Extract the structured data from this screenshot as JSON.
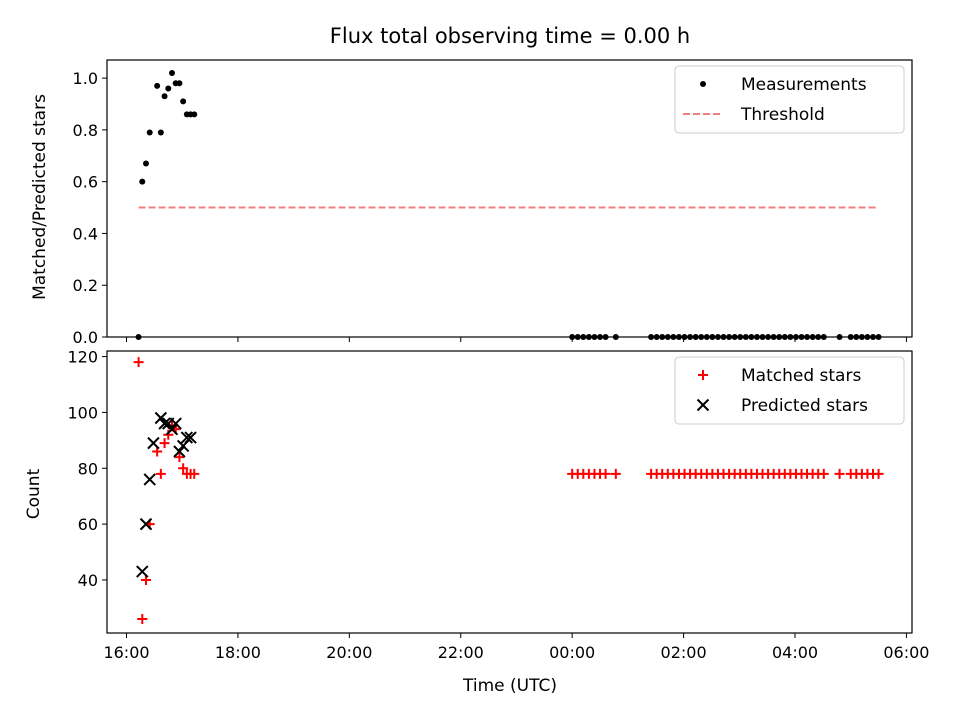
{
  "chart_data": [
    {
      "type": "scatter",
      "title": "Flux total observing time = 0.00 h",
      "ylabel": "Matched/Predicted stars",
      "xlim": [
        "2023-01-01T15:39",
        "2023-01-02T06:06"
      ],
      "ylim": [
        0,
        1.07
      ],
      "yticks": [
        "0.0",
        "0.2",
        "0.4",
        "0.6",
        "0.8",
        "1.0"
      ],
      "legend_position": "top-right",
      "series": [
        {
          "name": "Measurements",
          "kind": "scatter",
          "marker": "dot",
          "color": "#000000",
          "x": [
            "2023-01-01T16:13",
            "2023-01-01T16:17",
            "2023-01-01T16:21",
            "2023-01-01T16:25",
            "2023-01-01T16:33",
            "2023-01-01T16:37",
            "2023-01-01T16:41",
            "2023-01-01T16:45",
            "2023-01-01T16:49",
            "2023-01-01T16:53",
            "2023-01-01T16:57",
            "2023-01-01T17:01",
            "2023-01-01T17:05",
            "2023-01-01T17:09",
            "2023-01-01T17:13",
            "2023-01-02T00:00",
            "2023-01-02T00:06",
            "2023-01-02T00:12",
            "2023-01-02T00:18",
            "2023-01-02T00:24",
            "2023-01-02T00:30",
            "2023-01-02T00:36",
            "2023-01-02T00:47",
            "2023-01-02T01:25",
            "2023-01-02T01:31",
            "2023-01-02T01:37",
            "2023-01-02T01:43",
            "2023-01-02T01:49",
            "2023-01-02T01:55",
            "2023-01-02T02:01",
            "2023-01-02T02:07",
            "2023-01-02T02:13",
            "2023-01-02T02:19",
            "2023-01-02T02:25",
            "2023-01-02T02:31",
            "2023-01-02T02:37",
            "2023-01-02T02:43",
            "2023-01-02T02:49",
            "2023-01-02T02:55",
            "2023-01-02T03:01",
            "2023-01-02T03:07",
            "2023-01-02T03:13",
            "2023-01-02T03:19",
            "2023-01-02T03:25",
            "2023-01-02T03:31",
            "2023-01-02T03:37",
            "2023-01-02T03:43",
            "2023-01-02T03:49",
            "2023-01-02T03:55",
            "2023-01-02T04:01",
            "2023-01-02T04:07",
            "2023-01-02T04:13",
            "2023-01-02T04:19",
            "2023-01-02T04:25",
            "2023-01-02T04:31",
            "2023-01-02T04:48",
            "2023-01-02T05:00",
            "2023-01-02T05:06",
            "2023-01-02T05:12",
            "2023-01-02T05:18",
            "2023-01-02T05:24",
            "2023-01-02T05:30"
          ],
          "y": [
            0.0,
            0.6,
            0.67,
            0.79,
            0.97,
            0.79,
            0.93,
            0.96,
            1.02,
            0.98,
            0.98,
            0.91,
            0.86,
            0.86,
            0.86,
            0,
            0,
            0,
            0,
            0,
            0,
            0,
            0,
            0,
            0,
            0,
            0,
            0,
            0,
            0,
            0,
            0,
            0,
            0,
            0,
            0,
            0,
            0,
            0,
            0,
            0,
            0,
            0,
            0,
            0,
            0,
            0,
            0,
            0,
            0,
            0,
            0,
            0,
            0,
            0,
            0,
            0,
            0,
            0,
            0,
            0,
            0
          ]
        },
        {
          "name": "Threshold",
          "kind": "line",
          "dash": "dashed",
          "color": "#f08080",
          "x": [
            "2023-01-01T16:13",
            "2023-01-02T05:30"
          ],
          "y": [
            0.5,
            0.5
          ]
        }
      ]
    },
    {
      "type": "scatter",
      "xlabel": "Time (UTC)",
      "ylabel": "Count",
      "xlim": [
        "2023-01-01T15:39",
        "2023-01-02T06:06"
      ],
      "ylim": [
        21,
        122
      ],
      "xticks": [
        "16:00",
        "18:00",
        "20:00",
        "22:00",
        "00:00",
        "02:00",
        "04:00",
        "06:00"
      ],
      "xtick_times": [
        "2023-01-01T16:00",
        "2023-01-01T18:00",
        "2023-01-01T20:00",
        "2023-01-01T22:00",
        "2023-01-02T00:00",
        "2023-01-02T02:00",
        "2023-01-02T04:00",
        "2023-01-02T06:00"
      ],
      "yticks": [
        "40",
        "60",
        "80",
        "100",
        "120"
      ],
      "legend_position": "top-right",
      "series": [
        {
          "name": "Matched stars",
          "kind": "scatter",
          "marker": "plus",
          "color": "#ff0000",
          "x": [
            "2023-01-01T16:13",
            "2023-01-01T16:17",
            "2023-01-01T16:21",
            "2023-01-01T16:25",
            "2023-01-01T16:33",
            "2023-01-01T16:37",
            "2023-01-01T16:41",
            "2023-01-01T16:45",
            "2023-01-01T16:49",
            "2023-01-01T16:53",
            "2023-01-01T16:57",
            "2023-01-01T17:01",
            "2023-01-01T17:05",
            "2023-01-01T17:09",
            "2023-01-01T17:13",
            "2023-01-02T00:00",
            "2023-01-02T00:06",
            "2023-01-02T00:12",
            "2023-01-02T00:18",
            "2023-01-02T00:24",
            "2023-01-02T00:30",
            "2023-01-02T00:36",
            "2023-01-02T00:47",
            "2023-01-02T01:25",
            "2023-01-02T01:31",
            "2023-01-02T01:37",
            "2023-01-02T01:43",
            "2023-01-02T01:49",
            "2023-01-02T01:55",
            "2023-01-02T02:01",
            "2023-01-02T02:07",
            "2023-01-02T02:13",
            "2023-01-02T02:19",
            "2023-01-02T02:25",
            "2023-01-02T02:31",
            "2023-01-02T02:37",
            "2023-01-02T02:43",
            "2023-01-02T02:49",
            "2023-01-02T02:55",
            "2023-01-02T03:01",
            "2023-01-02T03:07",
            "2023-01-02T03:13",
            "2023-01-02T03:19",
            "2023-01-02T03:25",
            "2023-01-02T03:31",
            "2023-01-02T03:37",
            "2023-01-02T03:43",
            "2023-01-02T03:49",
            "2023-01-02T03:55",
            "2023-01-02T04:01",
            "2023-01-02T04:07",
            "2023-01-02T04:13",
            "2023-01-02T04:19",
            "2023-01-02T04:25",
            "2023-01-02T04:31",
            "2023-01-02T04:48",
            "2023-01-02T05:00",
            "2023-01-02T05:06",
            "2023-01-02T05:12",
            "2023-01-02T05:18",
            "2023-01-02T05:24",
            "2023-01-02T05:30"
          ],
          "y": [
            118,
            26,
            40,
            60,
            86,
            78,
            89,
            92,
            95,
            94,
            84,
            80,
            78,
            78,
            78,
            78,
            78,
            78,
            78,
            78,
            78,
            78,
            78,
            78,
            78,
            78,
            78,
            78,
            78,
            78,
            78,
            78,
            78,
            78,
            78,
            78,
            78,
            78,
            78,
            78,
            78,
            78,
            78,
            78,
            78,
            78,
            78,
            78,
            78,
            78,
            78,
            78,
            78,
            78,
            78,
            78,
            78,
            78,
            78,
            78,
            78,
            78
          ]
        },
        {
          "name": "Predicted stars",
          "kind": "scatter",
          "marker": "cross",
          "color": "#000000",
          "x": [
            "2023-01-01T16:17",
            "2023-01-01T16:21",
            "2023-01-01T16:25",
            "2023-01-01T16:29",
            "2023-01-01T16:37",
            "2023-01-01T16:41",
            "2023-01-01T16:45",
            "2023-01-01T16:49",
            "2023-01-01T16:53",
            "2023-01-01T16:57",
            "2023-01-01T17:01",
            "2023-01-01T17:05",
            "2023-01-01T17:09"
          ],
          "y": [
            43,
            60,
            76,
            89,
            98,
            96,
            96,
            94,
            96,
            86,
            88,
            91,
            91
          ]
        }
      ]
    }
  ]
}
